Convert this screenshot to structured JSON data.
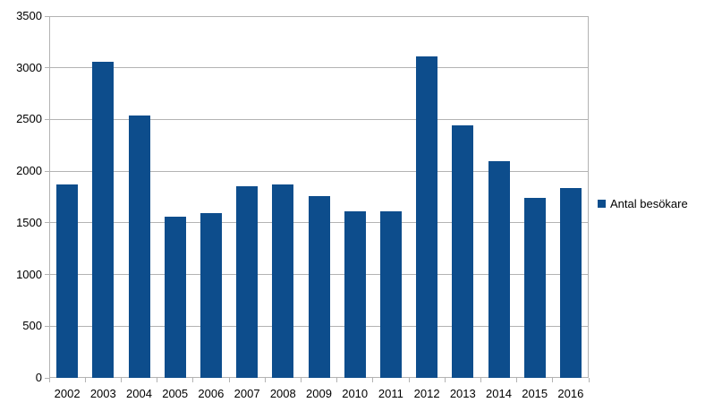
{
  "chart_data": {
    "type": "bar",
    "title": "",
    "xlabel": "",
    "ylabel": "",
    "categories": [
      "2002",
      "2003",
      "2004",
      "2005",
      "2006",
      "2007",
      "2008",
      "2009",
      "2010",
      "2011",
      "2012",
      "2013",
      "2014",
      "2015",
      "2016"
    ],
    "series": [
      {
        "name": "Antal besökare",
        "values": [
          1870,
          3060,
          2540,
          1560,
          1590,
          1855,
          1870,
          1760,
          1610,
          1610,
          3110,
          2440,
          2100,
          1740,
          1840
        ]
      }
    ],
    "ylim": [
      0,
      3500
    ],
    "ytick_step": 500,
    "yticks": [
      0,
      500,
      1000,
      1500,
      2000,
      2500,
      3000,
      3500
    ],
    "grid": true,
    "legend_position": "right"
  },
  "legend": {
    "label": "Antal besökare"
  },
  "colors": {
    "bar": "#0d4d8c",
    "gridline": "#b3b3b3",
    "text": "#000000",
    "background": "#ffffff"
  }
}
